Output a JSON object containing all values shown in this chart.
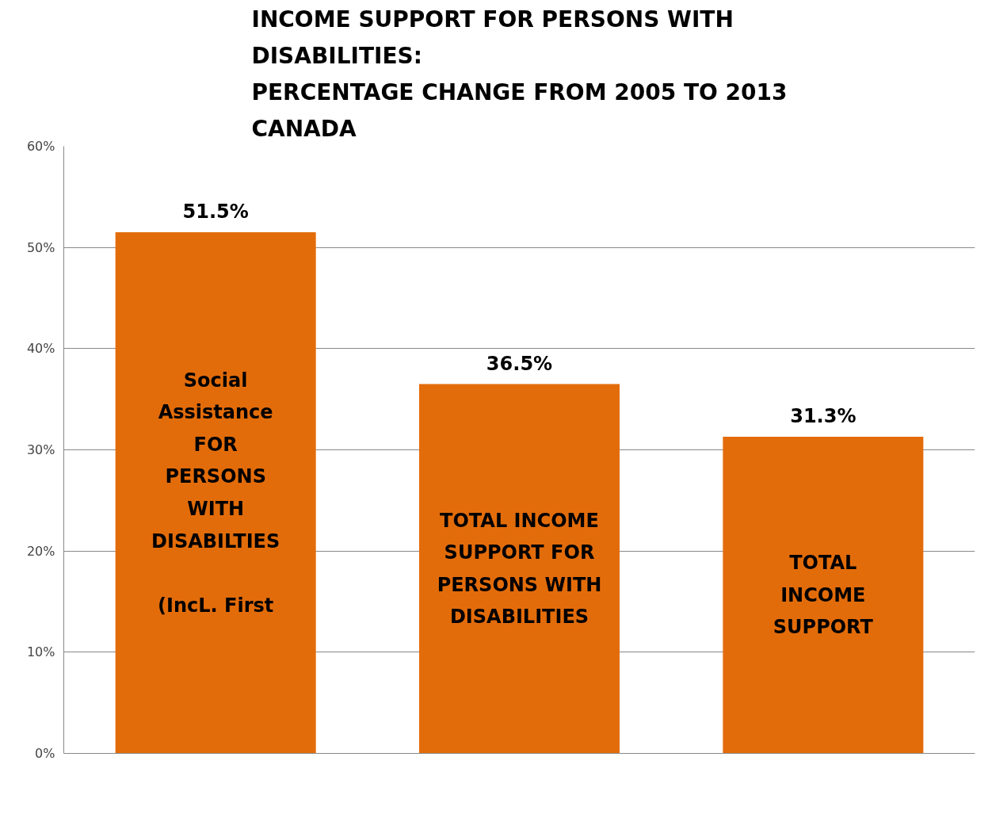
{
  "chart_data": {
    "type": "bar",
    "title": "INCOME SUPPORT FOR PERSONS WITH\nDISABILITIES:\nPERCENTAGE CHANGE FROM 2005 TO 2013\nCANADA",
    "categories": [
      "Social\nAssistance\nFOR\nPERSONS\nWITH\nDISABILTIES\n\n(IncL. First",
      "TOTAL INCOME\nSUPPORT FOR\nPERSONS WITH\nDISABILITIES",
      "TOTAL\nINCOME\nSUPPORT"
    ],
    "values": [
      51.5,
      36.5,
      31.3
    ],
    "value_labels": [
      "51.5%",
      "36.5%",
      "31.3%"
    ],
    "color": "#e36c0a",
    "ylim": [
      0,
      60
    ],
    "yticks": [
      {
        "value": 0,
        "label": "0%"
      },
      {
        "value": 10,
        "label": "10%"
      },
      {
        "value": 20,
        "label": "20%"
      },
      {
        "value": 30,
        "label": "30%"
      },
      {
        "value": 40,
        "label": "40%"
      },
      {
        "value": 50,
        "label": "50%"
      },
      {
        "value": 60,
        "label": "60%"
      }
    ],
    "grid": "y",
    "tick_labels": "y"
  }
}
